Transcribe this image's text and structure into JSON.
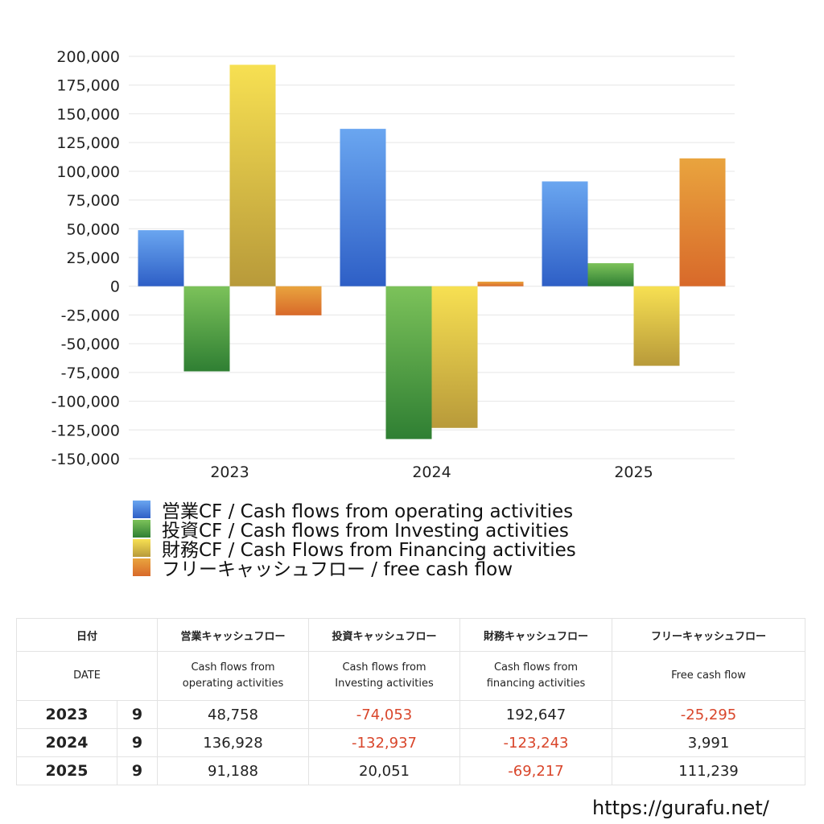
{
  "chart_data": {
    "type": "bar",
    "categories": [
      "2023",
      "2024",
      "2025"
    ],
    "ylim": [
      -150000,
      200000
    ],
    "yticks": [
      200000,
      175000,
      150000,
      125000,
      100000,
      75000,
      50000,
      25000,
      0,
      -25000,
      -50000,
      -75000,
      -100000,
      -125000,
      -150000
    ],
    "ytick_labels": [
      "200,000",
      "175,000",
      "150,000",
      "125,000",
      "100,000",
      "75,000",
      "50,000",
      "25,000",
      "0",
      "-25,000",
      "-50,000",
      "-75,000",
      "-100,000",
      "-125,000",
      "-150,000"
    ],
    "grid": true,
    "legend_position": "bottom",
    "series": [
      {
        "name": "営業CF / Cash flows from operating activities",
        "values": [
          48758,
          136928,
          91188
        ],
        "color_top": "#6aa6f0",
        "color_bottom": "#2e5fc6"
      },
      {
        "name": "投資CF / Cash flows from Investing activities",
        "values": [
          -74053,
          -132937,
          20051
        ],
        "color_top": "#7cc25a",
        "color_bottom": "#2f7f33"
      },
      {
        "name": "財務CF / Cash Flows from Financing activities",
        "values": [
          192647,
          -123243,
          -69217
        ],
        "color_top": "#f7e052",
        "color_bottom": "#b89a3a"
      },
      {
        "name": "フリーキャッシュフロー / free cash flow",
        "values": [
          -25295,
          3991,
          111239
        ],
        "color_top": "#e9a43e",
        "color_bottom": "#d8692a"
      }
    ]
  },
  "table": {
    "header_ja": [
      "日付",
      "",
      "営業キャッシュフロー",
      "投資キャッシュフロー",
      "財務キャッシュフロー",
      "フリーキャッシュフロー"
    ],
    "header_en": [
      "DATE",
      "",
      "Cash flows from\noperating activities",
      "Cash flows from\nInvesting activities",
      "Cash flows from\nfinancing activities",
      "Free cash flow"
    ],
    "rows": [
      {
        "year": "2023",
        "month": "9",
        "values": [
          "48,758",
          "-74,053",
          "192,647",
          "-25,295"
        ]
      },
      {
        "year": "2024",
        "month": "9",
        "values": [
          "136,928",
          "-132,937",
          "-123,243",
          "3,991"
        ]
      },
      {
        "year": "2025",
        "month": "9",
        "values": [
          "91,188",
          "20,051",
          "-69,217",
          "111,239"
        ]
      }
    ]
  },
  "site_url": "https://gurafu.net/",
  "negative_color": "#d9462b"
}
